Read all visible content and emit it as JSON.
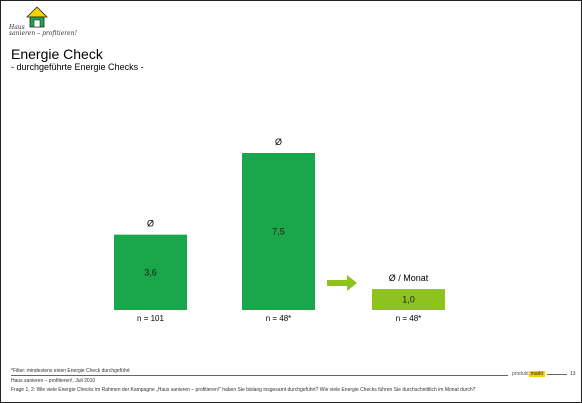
{
  "header": {
    "logo_line1": "Haus",
    "logo_line2": "sanieren – profitieren!",
    "title": "Energie Check",
    "subtitle": "- durchgeführte Energie Checks -"
  },
  "chart_data": {
    "type": "bar",
    "categories": [
      "",
      "",
      "Ø / Monat"
    ],
    "series": [
      {
        "values": [
          3.6,
          7.5,
          1.0
        ]
      }
    ],
    "value_labels": [
      "3,6",
      "7,5",
      "1,0"
    ],
    "bar_headers": [
      "Ø",
      "Ø",
      "Ø / Monat"
    ],
    "n_labels": [
      "n = 101",
      "n = 48*",
      "n = 48*"
    ],
    "ylim": [
      0,
      7.5
    ],
    "grid": false,
    "colors": [
      "#1aa64a",
      "#1aa64a",
      "#8dc21f"
    ],
    "arrow_color": "#8dc21f"
  },
  "footer": {
    "filter_note": "*Filter: mindestens einen Energie Check durchgeführt",
    "source": "Haus sanieren – profitieren!, Juli 2010",
    "question": "Frage 1, 2: Wie viele Energie Checks im Rahmen der Kampagne „Haus sanieren – profitieren!“ haben Sie bislang insgesamt durchgeführt? Wie viele Energie Checks führen Sie durchschnittlich im Monat durch?",
    "brand_left": "produkt",
    "brand_right": "markt",
    "page_number": "13"
  }
}
